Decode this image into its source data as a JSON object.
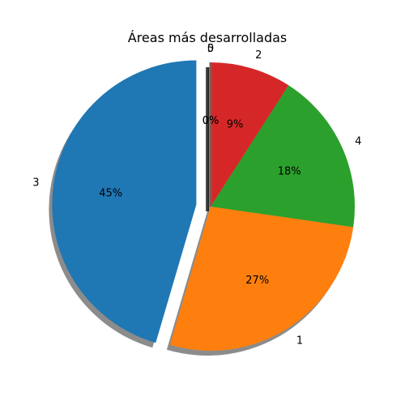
{
  "chart_data": {
    "type": "pie",
    "title": "Áreas más desarrolladas",
    "start_angle_deg": 90,
    "counterclock": true,
    "shadow": true,
    "slices": [
      {
        "name": "5",
        "pct_label": "0%",
        "value": 0.0,
        "color": "#9467bd",
        "explode": 0
      },
      {
        "name": "3",
        "pct_label": "45%",
        "value": 45.45,
        "color": "#1f77b4",
        "explode": 0.1
      },
      {
        "name": "1",
        "pct_label": "27%",
        "value": 27.27,
        "color": "#ff7f0e",
        "explode": 0
      },
      {
        "name": "4",
        "pct_label": "18%",
        "value": 18.18,
        "color": "#2ca02c",
        "explode": 0
      },
      {
        "name": "2",
        "pct_label": "9%",
        "value": 9.09,
        "color": "#d62728",
        "explode": 0
      },
      {
        "name": "0",
        "pct_label": "0%",
        "value": 0.0,
        "color": "#8c564b",
        "explode": 0
      }
    ]
  }
}
